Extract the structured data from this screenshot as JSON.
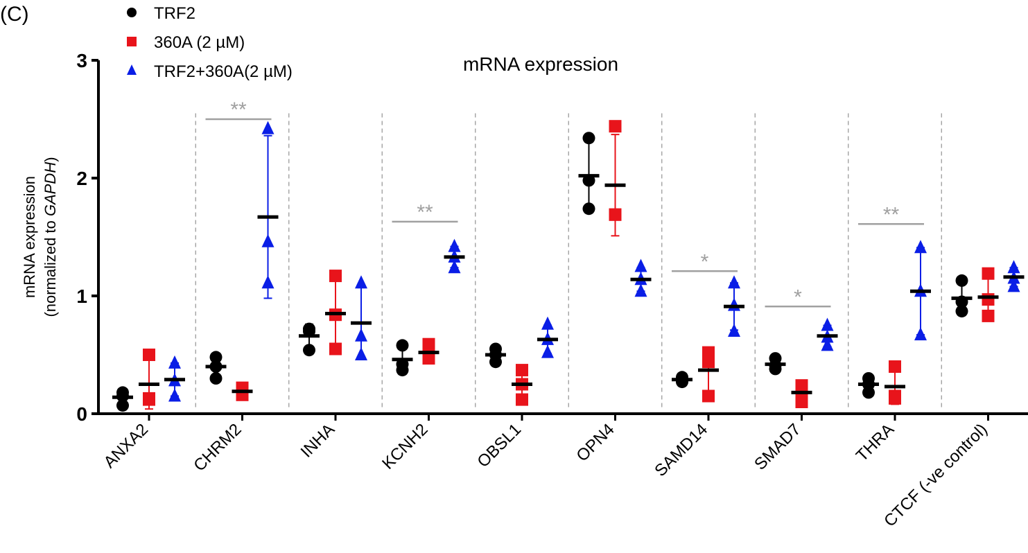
{
  "panel_label": "(C)",
  "chart_data": {
    "type": "scatter",
    "title": "mRNA expression",
    "ylabel_line1": "mRNA expression",
    "ylabel_line2_prefix": "(normalized to ",
    "ylabel_line2_italic": "GAPDH",
    "ylabel_line2_suffix": ")",
    "ylim": [
      0,
      3
    ],
    "yticks": [
      "0",
      "1",
      "2",
      "3"
    ],
    "grid": false,
    "legend_placement": "top-left",
    "categories": [
      "ANXA2",
      "CHRM2",
      "INHA",
      "KCNH2",
      "OBSL1",
      "OPN4",
      "SAMD14",
      "SMAD7",
      "THRA",
      "CTCF (-ve control)"
    ],
    "series": [
      {
        "name": "TRF2",
        "marker": "circle",
        "color": "#000000",
        "points": [
          [
            0.18,
            0.15,
            0.07
          ],
          [
            0.48,
            0.4,
            0.3
          ],
          [
            0.72,
            0.7,
            0.54
          ],
          [
            0.58,
            0.42,
            0.37
          ],
          [
            0.55,
            0.5,
            0.44
          ],
          [
            2.34,
            1.98,
            1.74
          ],
          [
            0.31,
            0.28,
            0.27
          ],
          [
            0.47,
            0.41,
            0.38
          ],
          [
            0.3,
            0.25,
            0.18
          ],
          [
            1.13,
            0.95,
            0.87
          ]
        ],
        "mean": [
          0.14,
          0.4,
          0.66,
          0.46,
          0.5,
          2.02,
          0.29,
          0.42,
          0.25,
          0.98
        ],
        "sd": [
          0.05,
          0.09,
          0.1,
          0.11,
          0.06,
          0.3,
          0.02,
          0.05,
          0.06,
          0.13
        ]
      },
      {
        "name": "360A (2 µM)",
        "marker": "square",
        "color": "#e8141b",
        "points": [
          [
            0.5,
            0.13,
            0.12
          ],
          [
            0.22,
            0.18,
            0.16
          ],
          [
            1.17,
            0.84,
            0.55
          ],
          [
            0.59,
            0.5,
            0.47
          ],
          [
            0.37,
            0.25,
            0.12
          ],
          [
            2.44,
            1.69,
            1.69
          ],
          [
            0.52,
            0.44,
            0.15
          ],
          [
            0.24,
            0.2,
            0.1
          ],
          [
            0.4,
            0.15,
            0.13
          ],
          [
            1.19,
            0.97,
            0.83
          ]
        ],
        "mean": [
          0.25,
          0.19,
          0.85,
          0.52,
          0.25,
          1.94,
          0.37,
          0.18,
          0.23,
          0.99
        ],
        "sd": [
          0.21,
          0.03,
          0.31,
          0.06,
          0.12,
          0.43,
          0.19,
          0.07,
          0.15,
          0.18
        ]
      },
      {
        "name": "TRF2+360A(2 µM)",
        "marker": "triangle",
        "color": "#0a1ee6",
        "points": [
          [
            0.43,
            0.28,
            0.15
          ],
          [
            2.42,
            1.46,
            1.11
          ],
          [
            1.11,
            0.66,
            0.5
          ],
          [
            1.42,
            1.33,
            1.24
          ],
          [
            0.76,
            0.63,
            0.52
          ],
          [
            1.25,
            1.14,
            1.04
          ],
          [
            1.11,
            0.92,
            0.7
          ],
          [
            0.75,
            0.65,
            0.58
          ],
          [
            1.41,
            1.04,
            0.67
          ],
          [
            1.24,
            1.15,
            1.08
          ]
        ],
        "mean": [
          0.29,
          1.67,
          0.77,
          1.33,
          0.63,
          1.14,
          0.91,
          0.66,
          1.04,
          1.16
        ],
        "sd": [
          0.14,
          0.69,
          0.3,
          0.09,
          0.12,
          0.1,
          0.2,
          0.09,
          0.37,
          0.08
        ]
      }
    ],
    "significance": [
      {
        "category": "CHRM2",
        "label": "**",
        "y": 2.5
      },
      {
        "category": "KCNH2",
        "label": "**",
        "y": 1.63
      },
      {
        "category": "SAMD14",
        "label": "*",
        "y": 1.21
      },
      {
        "category": "SMAD7",
        "label": "*",
        "y": 0.91
      },
      {
        "category": "THRA",
        "label": "**",
        "y": 1.61
      }
    ],
    "significance_color": "#a0a0a0"
  }
}
